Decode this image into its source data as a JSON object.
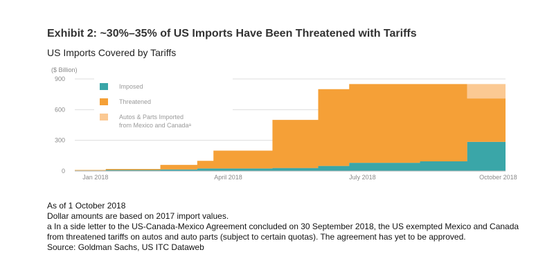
{
  "title": "Exhibit 2: ~30%–35% of US Imports Have Been Threatened with Tariffs",
  "subtitle": "US Imports Covered by Tariffs",
  "notes": [
    "As of 1 October 2018",
    "Dollar amounts are based on 2017 import values.",
    "a In a side letter to the US-Canada-Mexico Agreement concluded on 30 September 2018, the US exempted Mexico and Canada from threatened tariffs on autos and auto parts (subject to certain quotas). The agreement has yet to be approved.",
    "Source: Goldman Sachs, US ITC Dataweb"
  ],
  "colors": {
    "imposed": "#3aa6a8",
    "threatened": "#f5a037",
    "autos": "#fbc993",
    "grid": "#dddddd",
    "axis": "#bbbbbb"
  },
  "chart_data": {
    "type": "area",
    "title": "US Imports Covered by Tariffs",
    "ylabel": "($ Billion)",
    "ylim": [
      0,
      900
    ],
    "yticks": [
      0,
      300,
      600,
      900
    ],
    "xlim": [
      "2018-01-01",
      "2018-10-20"
    ],
    "xticks": [
      {
        "date": "2018-01-15",
        "label": "Jan 2018"
      },
      {
        "date": "2018-04-15",
        "label": "April 2018"
      },
      {
        "date": "2018-07-15",
        "label": "July 2018"
      },
      {
        "date": "2018-10-15",
        "label": "October 2018"
      }
    ],
    "grid": true,
    "legend_position": "top-left",
    "stacked": true,
    "x": [
      "2018-01-01",
      "2018-01-22",
      "2018-02-28",
      "2018-03-25",
      "2018-04-05",
      "2018-05-15",
      "2018-06-15",
      "2018-07-06",
      "2018-08-23",
      "2018-09-24",
      "2018-10-20"
    ],
    "series": [
      {
        "name": "Imposed",
        "key": "imposed",
        "values": [
          5,
          10,
          15,
          25,
          25,
          30,
          50,
          80,
          95,
          285,
          285
        ]
      },
      {
        "name": "Threatened",
        "key": "threatened",
        "values": [
          5,
          10,
          45,
          75,
          175,
          470,
          750,
          770,
          755,
          425,
          425
        ]
      },
      {
        "name": "Autos & Parts Imported from Mexico and Canadaᵃ",
        "key": "autos",
        "values": [
          0,
          0,
          0,
          0,
          0,
          0,
          0,
          0,
          0,
          140,
          140
        ]
      }
    ]
  }
}
